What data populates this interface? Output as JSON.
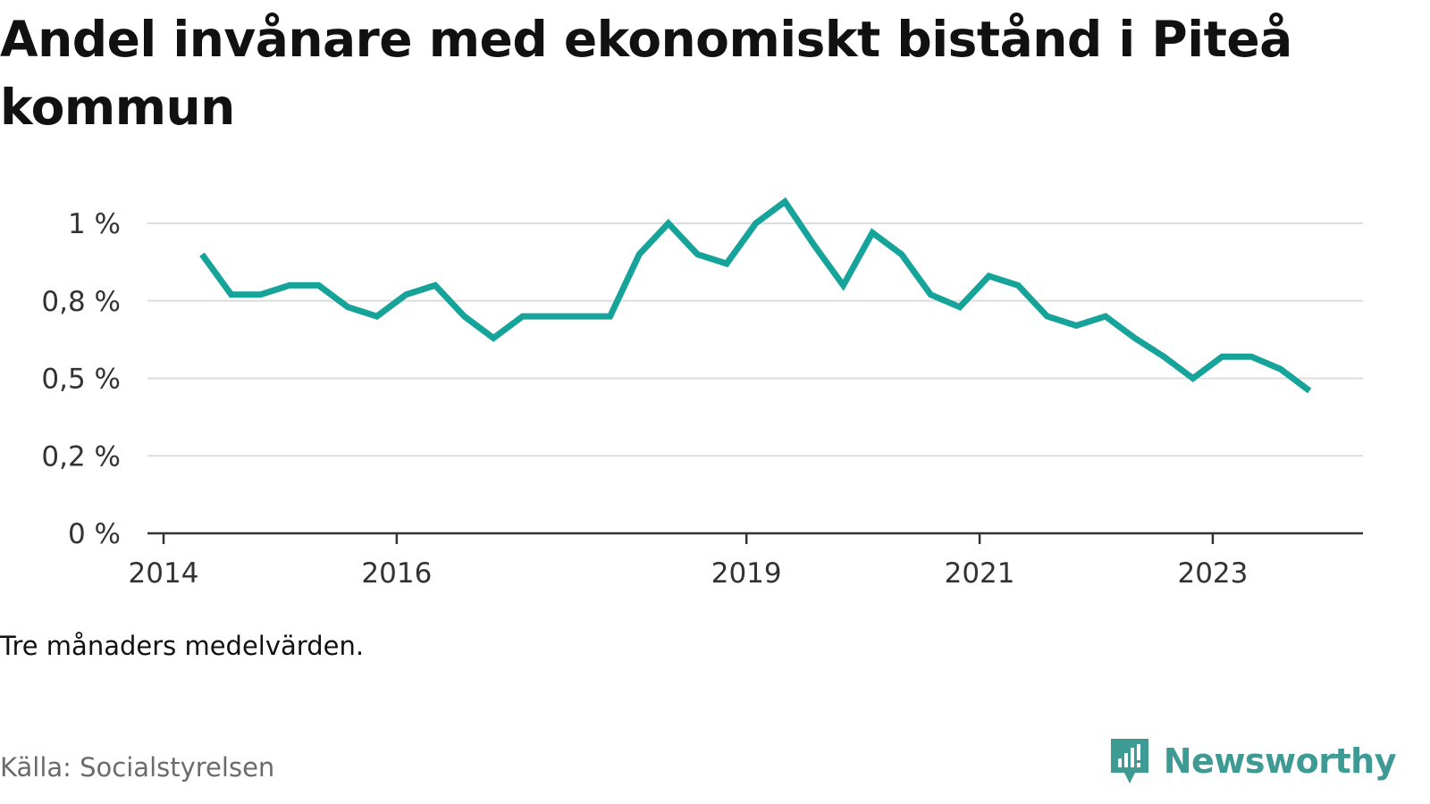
{
  "title": "Andel invånare med ekonomiskt bistånd i Piteå kommun",
  "note": "Tre månaders medelvärden.",
  "source": "Källa: Socialstyrelsen",
  "brand": {
    "name": "Newsworthy",
    "icon": "newsworthy-logo-icon",
    "color": "#3d9b93"
  },
  "colors": {
    "line": "#15a39a",
    "grid": "#dddddd",
    "axis": "#333333"
  },
  "chart_data": {
    "type": "line",
    "title": "Andel invånare med ekonomiskt bistånd i Piteå kommun",
    "xlabel": "",
    "ylabel": "",
    "xlim": [
      2014,
      2024.3
    ],
    "ylim": [
      0,
      1.0
    ],
    "grid": true,
    "y_ticks": [
      {
        "value": 0,
        "label": "0 %"
      },
      {
        "value": 0.25,
        "label": "0,2 %"
      },
      {
        "value": 0.5,
        "label": "0,5 %"
      },
      {
        "value": 0.75,
        "label": "0,8 %"
      },
      {
        "value": 1.0,
        "label": "1 %"
      }
    ],
    "x_ticks": [
      {
        "value": 2014,
        "label": "2014"
      },
      {
        "value": 2016,
        "label": "2016"
      },
      {
        "value": 2019,
        "label": "2019"
      },
      {
        "value": 2021,
        "label": "2021"
      },
      {
        "value": 2023,
        "label": "2023"
      }
    ],
    "series": [
      {
        "x": [
          2014.33,
          2014.58,
          2014.83,
          2015.08,
          2015.33,
          2015.58,
          2015.83,
          2016.08,
          2016.33,
          2016.58,
          2016.83,
          2017.08,
          2017.33,
          2017.58,
          2017.83,
          2018.08,
          2018.33,
          2018.58,
          2018.83,
          2019.08,
          2019.33,
          2019.58,
          2019.83,
          2020.08,
          2020.33,
          2020.58,
          2020.83,
          2021.08,
          2021.33,
          2021.58,
          2021.83,
          2022.08,
          2022.33,
          2022.58,
          2022.83,
          2023.08,
          2023.33,
          2023.58,
          2023.83
        ],
        "values": [
          0.9,
          0.77,
          0.77,
          0.8,
          0.8,
          0.73,
          0.7,
          0.77,
          0.8,
          0.7,
          0.63,
          0.7,
          0.7,
          0.7,
          0.7,
          0.9,
          1.0,
          0.9,
          0.87,
          1.0,
          1.07,
          0.93,
          0.8,
          0.97,
          0.9,
          0.77,
          0.73,
          0.83,
          0.8,
          0.7,
          0.67,
          0.7,
          0.63,
          0.57,
          0.5,
          0.57,
          0.57,
          0.53,
          0.46
        ]
      }
    ]
  }
}
